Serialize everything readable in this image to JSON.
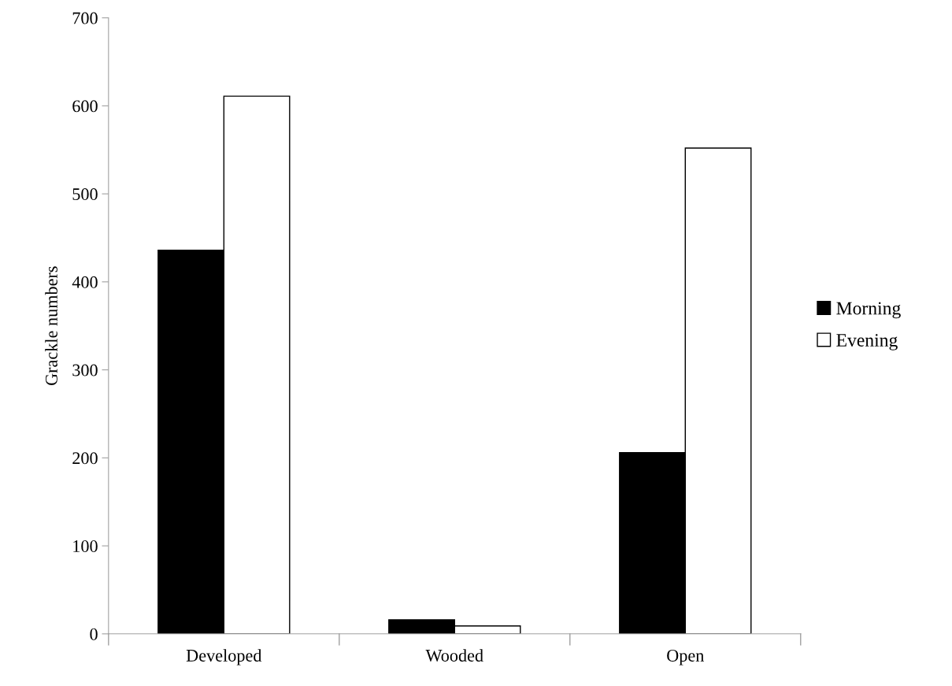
{
  "chart_data": {
    "type": "bar",
    "ylabel": "Grackle numbers",
    "categories": [
      "Developed",
      "Wooded",
      "Open"
    ],
    "series": [
      {
        "name": "Morning",
        "color": "#000000",
        "values": [
          436,
          16,
          206
        ]
      },
      {
        "name": "Evening",
        "color": "#ffffff",
        "values": [
          611,
          9,
          552
        ]
      }
    ],
    "ylim": [
      0,
      700
    ],
    "yticks": [
      0,
      100,
      200,
      300,
      400,
      500,
      600,
      700
    ],
    "grid": false,
    "legend": "right"
  }
}
